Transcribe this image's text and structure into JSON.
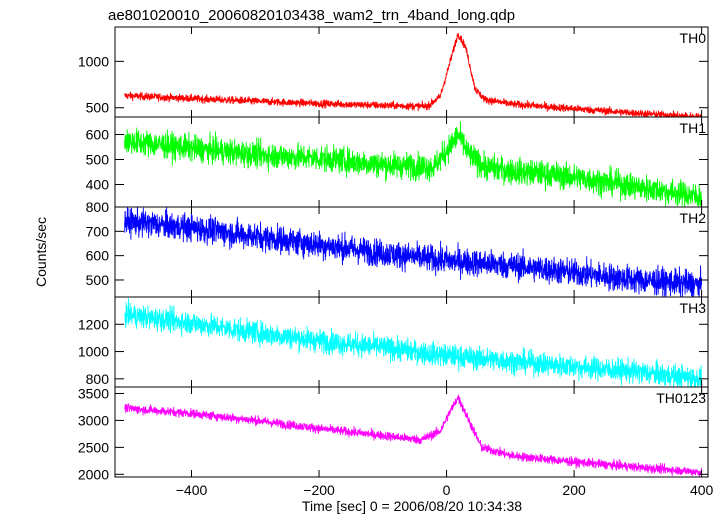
{
  "chart_data": {
    "type": "line",
    "title": "ae801020010_20060820103438_wam2_trn_4band_long.qdp",
    "xlabel": "Time [sec] 0 = 2006/08/20 10:34:38",
    "ylabel": "Counts/sec",
    "xlim": [
      -520,
      410
    ],
    "x_ticks": [
      -400,
      -200,
      0,
      200,
      400
    ],
    "x_tick_labels": [
      "−400",
      "−200",
      "0",
      "200",
      "400"
    ],
    "grid": false,
    "panels": [
      {
        "name": "TH0",
        "color": "#ff0000",
        "ylim": [
          400,
          1370
        ],
        "y_ticks": [
          500,
          1000
        ],
        "noise": 22,
        "points": [
          [
            -505,
            630
          ],
          [
            -400,
            600
          ],
          [
            -300,
            570
          ],
          [
            -200,
            545
          ],
          [
            -100,
            525
          ],
          [
            -30,
            515
          ],
          [
            -10,
            620
          ],
          [
            5,
            980
          ],
          [
            18,
            1300
          ],
          [
            30,
            1150
          ],
          [
            45,
            700
          ],
          [
            60,
            590
          ],
          [
            100,
            540
          ],
          [
            200,
            490
          ],
          [
            300,
            440
          ],
          [
            400,
            400
          ]
        ]
      },
      {
        "name": "TH1",
        "color": "#00ff00",
        "ylim": [
          310,
          670
        ],
        "y_ticks": [
          400,
          500,
          600
        ],
        "noise": 28,
        "points": [
          [
            -505,
            575
          ],
          [
            -400,
            545
          ],
          [
            -300,
            520
          ],
          [
            -200,
            505
          ],
          [
            -100,
            480
          ],
          [
            -20,
            470
          ],
          [
            5,
            550
          ],
          [
            18,
            600
          ],
          [
            35,
            520
          ],
          [
            60,
            470
          ],
          [
            100,
            455
          ],
          [
            200,
            430
          ],
          [
            300,
            390
          ],
          [
            400,
            350
          ]
        ]
      },
      {
        "name": "TH2",
        "color": "#0000ff",
        "ylim": [
          430,
          800
        ],
        "y_ticks": [
          500,
          600,
          700,
          800
        ],
        "noise": 30,
        "points": [
          [
            -505,
            740
          ],
          [
            -400,
            715
          ],
          [
            -300,
            680
          ],
          [
            -200,
            645
          ],
          [
            -100,
            610
          ],
          [
            0,
            580
          ],
          [
            100,
            560
          ],
          [
            200,
            530
          ],
          [
            300,
            500
          ],
          [
            400,
            480
          ]
        ]
      },
      {
        "name": "TH3",
        "color": "#00ffff",
        "ylim": [
          740,
          1400
        ],
        "y_ticks": [
          800,
          1000,
          1200
        ],
        "noise": 45,
        "points": [
          [
            -505,
            1270
          ],
          [
            -400,
            1210
          ],
          [
            -300,
            1140
          ],
          [
            -200,
            1080
          ],
          [
            -100,
            1030
          ],
          [
            0,
            970
          ],
          [
            100,
            930
          ],
          [
            200,
            890
          ],
          [
            300,
            850
          ],
          [
            400,
            800
          ]
        ]
      },
      {
        "name": "TH0123",
        "color": "#ff00ff",
        "ylim": [
          1950,
          3620
        ],
        "y_ticks": [
          2000,
          2500,
          3000,
          3500
        ],
        "noise": 45,
        "points": [
          [
            -505,
            3230
          ],
          [
            -400,
            3130
          ],
          [
            -300,
            3000
          ],
          [
            -200,
            2850
          ],
          [
            -100,
            2720
          ],
          [
            -40,
            2640
          ],
          [
            -10,
            2800
          ],
          [
            5,
            3150
          ],
          [
            18,
            3430
          ],
          [
            35,
            3000
          ],
          [
            55,
            2500
          ],
          [
            100,
            2350
          ],
          [
            200,
            2230
          ],
          [
            300,
            2130
          ],
          [
            400,
            2040
          ]
        ]
      }
    ]
  }
}
